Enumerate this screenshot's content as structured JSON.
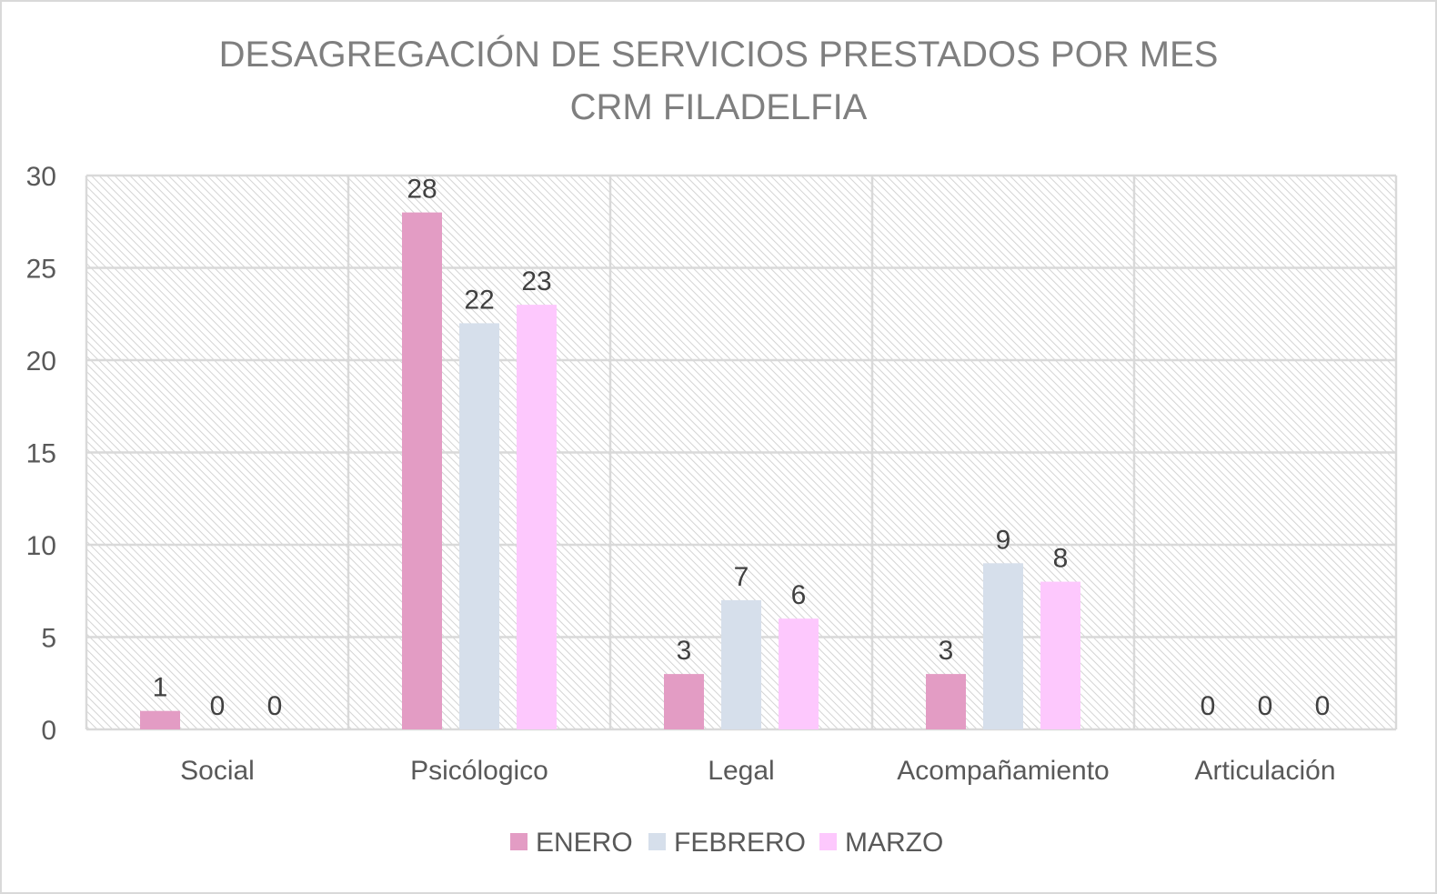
{
  "chart_data": {
    "type": "bar",
    "title": "DESAGREGACIÓN DE SERVICIOS PRESTADOS POR MES",
    "subtitle": "CRM FILADELFIA",
    "categories": [
      "Social",
      "Psicólogico",
      "Legal",
      "Acompañamiento",
      "Articulación"
    ],
    "series": [
      {
        "name": "ENERO",
        "color": "#e39cc4",
        "values": [
          1,
          28,
          3,
          3,
          0
        ]
      },
      {
        "name": "FEBRERO",
        "color": "#d6dfeb",
        "values": [
          0,
          22,
          7,
          9,
          0
        ]
      },
      {
        "name": "MARZO",
        "color": "#fdc8fd",
        "values": [
          0,
          23,
          6,
          8,
          0
        ]
      }
    ],
    "yticks": [
      0,
      5,
      10,
      15,
      20,
      25,
      30
    ],
    "ylim": [
      0,
      30
    ],
    "grid": true,
    "legend_position": "bottom",
    "data_labels": true
  }
}
